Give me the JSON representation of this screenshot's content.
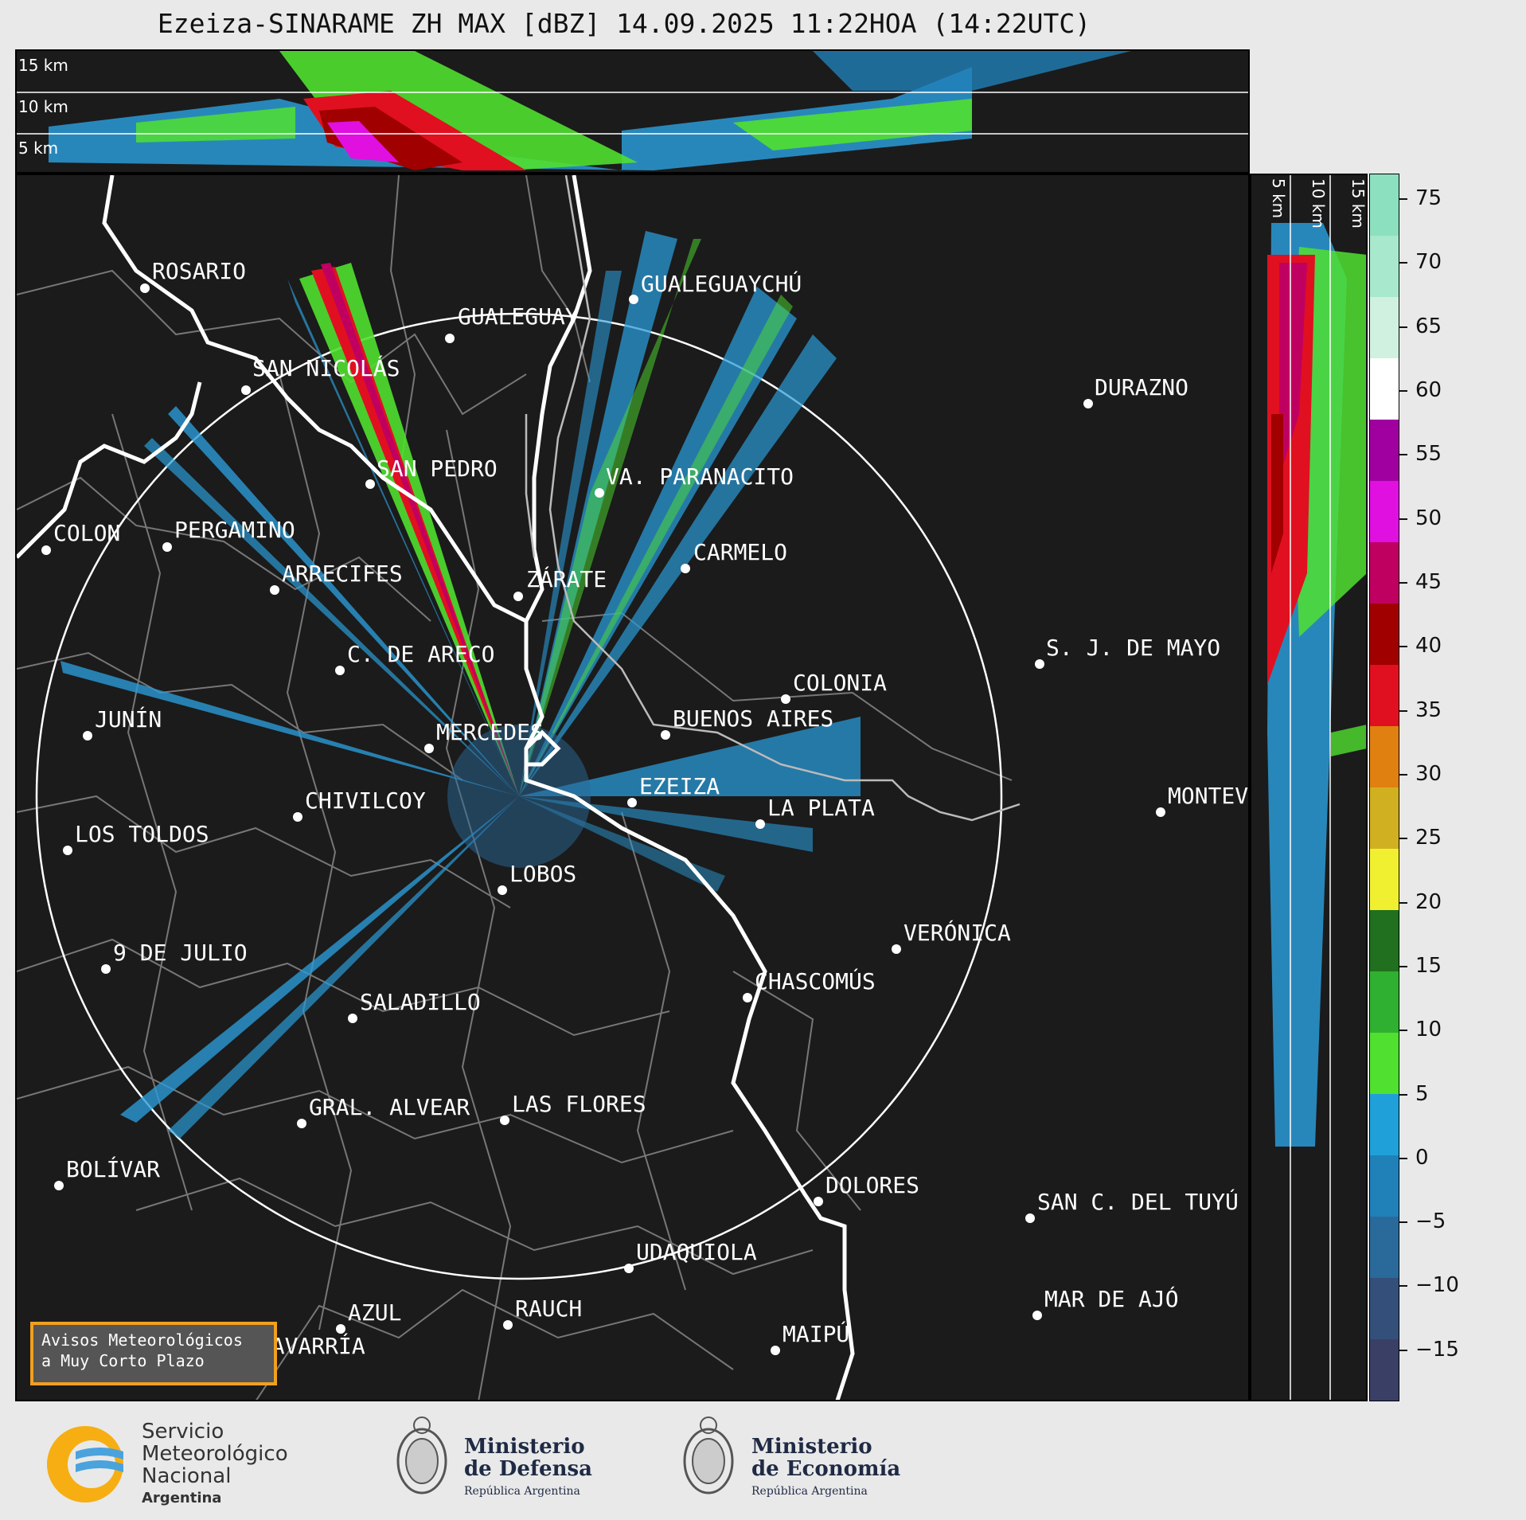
{
  "title": "Ezeiza-SINARAME ZH MAX [dBZ] 14.09.2025 11:22HOA (14:22UTC)",
  "height_labels": [
    "15 km",
    "10 km",
    "5 km"
  ],
  "cities": [
    {
      "name": "ROSARIO"
    },
    {
      "name": "GUALEGUAYCHÚ"
    },
    {
      "name": "GUALEGUAY"
    },
    {
      "name": "SAN NICOLÁS"
    },
    {
      "name": "DURAZNO"
    },
    {
      "name": "SAN PEDRO"
    },
    {
      "name": "VA. PARANACITO"
    },
    {
      "name": "COLON"
    },
    {
      "name": "PERGAMINO"
    },
    {
      "name": "CARMELO"
    },
    {
      "name": "ARRECIFES"
    },
    {
      "name": "ZÁRATE"
    },
    {
      "name": "S. J. DE MAYO"
    },
    {
      "name": "C. DE ARECO"
    },
    {
      "name": "COLONIA"
    },
    {
      "name": "BUENOS AIRES"
    },
    {
      "name": "JUNÍN"
    },
    {
      "name": "MERCEDES"
    },
    {
      "name": "EZEIZA"
    },
    {
      "name": "MONTEVIDEO"
    },
    {
      "name": "CHIVILCOY"
    },
    {
      "name": "LA PLATA"
    },
    {
      "name": "LOS TOLDOS"
    },
    {
      "name": "LOBOS"
    },
    {
      "name": "VERÓNICA"
    },
    {
      "name": "9 DE JULIO"
    },
    {
      "name": "CHASCOMÚS"
    },
    {
      "name": "SALADILLO"
    },
    {
      "name": "GRAL. ALVEAR"
    },
    {
      "name": "LAS FLORES"
    },
    {
      "name": "BOLÍVAR"
    },
    {
      "name": "DOLORES"
    },
    {
      "name": "SAN C. DEL TUYÚ"
    },
    {
      "name": "UDAQUIOLA"
    },
    {
      "name": "MAR DE AJÓ"
    },
    {
      "name": "AZUL"
    },
    {
      "name": "RAUCH"
    },
    {
      "name": "MAIPÚ"
    },
    {
      "name": "OLAVARRÍA"
    }
  ],
  "colorbar": {
    "ticks": [
      "75",
      "70",
      "65",
      "60",
      "55",
      "50",
      "45",
      "40",
      "35",
      "30",
      "25",
      "20",
      "15",
      "10",
      "5",
      "0",
      "−5",
      "−10",
      "−15"
    ],
    "stops": [
      "#8ce0bf",
      "#a8e8cc",
      "#d0f0e0",
      "#ffffff",
      "#a000a0",
      "#e010e0",
      "#c00060",
      "#a00000",
      "#e01020",
      "#e08010",
      "#d0b020",
      "#f0f030",
      "#207020",
      "#30b030",
      "#50e030",
      "#20a0d8",
      "#2080b8",
      "#2a6a9a",
      "#34507a",
      "#3a3f66"
    ]
  },
  "avisos": {
    "line1": "Avisos Meteorológicos",
    "line2": "a Muy Corto Plazo"
  },
  "logos": {
    "smn": [
      "Servicio",
      "Meteorológico",
      "Nacional",
      "Argentina"
    ],
    "defensa": [
      "Ministerio",
      "de Defensa",
      "República Argentina"
    ],
    "economia": [
      "Ministerio",
      "de Economía",
      "República Argentina"
    ]
  }
}
